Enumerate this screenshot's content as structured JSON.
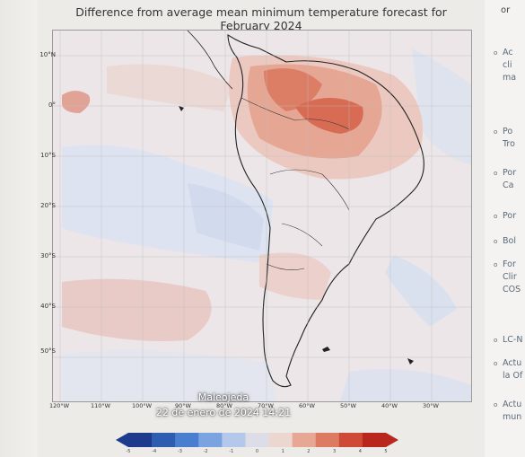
{
  "figure": {
    "title_line1": "Difference from average mean minimum temperature forecast for",
    "title_line2": "February 2024",
    "lat_labels": [
      "10°N",
      "0°",
      "10°S",
      "20°S",
      "30°S",
      "40°S",
      "50°S"
    ],
    "lon_labels": [
      "120°W",
      "110°W",
      "100°W",
      "90°W",
      "80°W",
      "70°W",
      "60°W",
      "50°W",
      "40°W",
      "30°W"
    ],
    "colorbar_ticks": [
      "-5",
      "-4",
      "-3",
      "-2",
      "-1",
      "0",
      "1",
      "2",
      "3",
      "4",
      "5"
    ],
    "colorbar_colors": [
      "#1e3a8c",
      "#2e5cb0",
      "#4a7fd0",
      "#7ba3e0",
      "#b3c8ea",
      "#dcdde6",
      "#ebd6d0",
      "#e6a894",
      "#dc7a62",
      "#cf4a36",
      "#b8261e"
    ]
  },
  "overlay": {
    "author": "Maleojeda",
    "timestamp": "22 de enero de 2024 14:21"
  },
  "right_panel": {
    "top_text": "or",
    "items": [
      {
        "lines": [
          "Ac",
          "cli",
          "ma"
        ]
      },
      {
        "lines": [
          "Po",
          "Tro"
        ]
      },
      {
        "lines": [
          "Por",
          "Ca"
        ]
      },
      {
        "lines": [
          "Por"
        ]
      },
      {
        "lines": [
          "Bol"
        ]
      },
      {
        "lines": [
          "For",
          "Clir",
          "COS"
        ]
      },
      {
        "lines": [
          "LC-N"
        ]
      },
      {
        "lines": [
          "Actu",
          "la Of"
        ]
      },
      {
        "lines": [
          "Actu",
          "mun"
        ]
      }
    ]
  }
}
